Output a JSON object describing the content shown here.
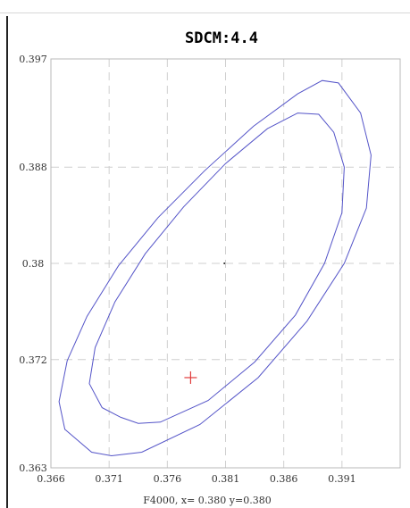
{
  "chart_data": {
    "type": "line",
    "title": "SDCM:4.4",
    "xlim": [
      0.366,
      0.396
    ],
    "ylim": [
      0.363,
      0.397
    ],
    "x_ticks": [
      "0.366",
      "0.371",
      "0.376",
      "0.381",
      "0.386",
      "0.391"
    ],
    "x_tick_values": [
      0.366,
      0.371,
      0.376,
      0.381,
      0.386,
      0.391
    ],
    "y_ticks": [
      "0.397",
      "0.388",
      "0.38",
      "0.372",
      "0.363"
    ],
    "y_tick_values": [
      0.397,
      0.388,
      0.38,
      0.372,
      0.363
    ],
    "grid": true,
    "footer": "F4000,  x= 0.380  y=0.380",
    "series": [
      {
        "color": "#5454c8",
        "points": [
          [
            0.3672,
            0.3662
          ],
          [
            0.3667,
            0.3685
          ],
          [
            0.3674,
            0.3719
          ],
          [
            0.3691,
            0.3756
          ],
          [
            0.3718,
            0.3798
          ],
          [
            0.3752,
            0.3838
          ],
          [
            0.3792,
            0.3877
          ],
          [
            0.3834,
            0.3914
          ],
          [
            0.3872,
            0.3941
          ],
          [
            0.3893,
            0.3952
          ],
          [
            0.3907,
            0.395
          ],
          [
            0.3926,
            0.3925
          ],
          [
            0.3935,
            0.389
          ],
          [
            0.3931,
            0.3846
          ],
          [
            0.3912,
            0.38
          ],
          [
            0.388,
            0.3752
          ],
          [
            0.3838,
            0.3705
          ],
          [
            0.3788,
            0.3666
          ],
          [
            0.3738,
            0.3643
          ],
          [
            0.3712,
            0.364
          ],
          [
            0.3695,
            0.3643
          ],
          [
            0.3672,
            0.3662
          ]
        ]
      },
      {
        "color": "#5454c8",
        "points": [
          [
            0.3704,
            0.368
          ],
          [
            0.3693,
            0.37
          ],
          [
            0.3698,
            0.373
          ],
          [
            0.3715,
            0.3768
          ],
          [
            0.3741,
            0.3808
          ],
          [
            0.3774,
            0.3847
          ],
          [
            0.381,
            0.3883
          ],
          [
            0.3846,
            0.3912
          ],
          [
            0.3872,
            0.3925
          ],
          [
            0.389,
            0.3924
          ],
          [
            0.3903,
            0.3909
          ],
          [
            0.3912,
            0.388
          ],
          [
            0.391,
            0.3842
          ],
          [
            0.3895,
            0.38
          ],
          [
            0.387,
            0.3757
          ],
          [
            0.3835,
            0.3718
          ],
          [
            0.3795,
            0.3686
          ],
          [
            0.3754,
            0.3668
          ],
          [
            0.3735,
            0.3667
          ],
          [
            0.372,
            0.3672
          ],
          [
            0.3704,
            0.368
          ]
        ]
      }
    ],
    "markers": [
      {
        "x": 0.378,
        "y": 0.3705,
        "symbol": "cross",
        "color": "#e03c3c"
      },
      {
        "x": 0.3809,
        "y": 0.38,
        "symbol": "dot",
        "color": "#222222"
      }
    ]
  }
}
